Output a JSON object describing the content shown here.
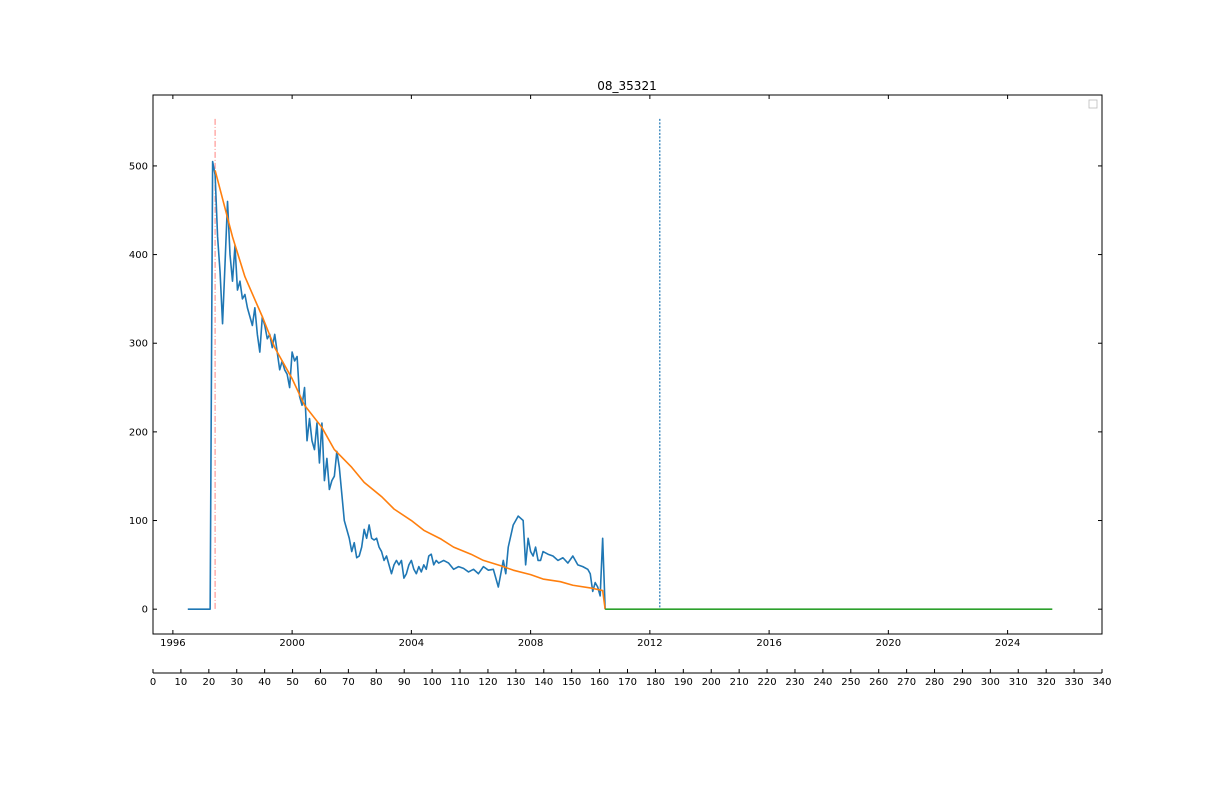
{
  "chart_data": {
    "type": "line",
    "title": "08_35321",
    "xlabel": "",
    "ylabel": "",
    "x_axis": {
      "kind": "date",
      "range": [
        "1995-05-01",
        "2027-03-01"
      ],
      "ticks": [
        "1996",
        "2000",
        "2004",
        "2008",
        "2012",
        "2016",
        "2020",
        "2024"
      ]
    },
    "y_axis": {
      "range": [
        -28,
        580
      ],
      "ticks": [
        0,
        100,
        200,
        300,
        400,
        500
      ]
    },
    "secondary_x_axis": {
      "range": [
        0,
        340
      ],
      "ticks": [
        0,
        10,
        20,
        30,
        40,
        50,
        60,
        70,
        80,
        90,
        100,
        110,
        120,
        130,
        140,
        150,
        160,
        170,
        180,
        190,
        200,
        210,
        220,
        230,
        240,
        250,
        260,
        270,
        280,
        290,
        300,
        310,
        320,
        330,
        340
      ]
    },
    "legend": {
      "placement": "top-right",
      "entries": []
    },
    "grid": false,
    "series": [
      {
        "color": "#1f77b4",
        "x": [
          "1996-07",
          "1996-10",
          "1997-01",
          "1997-04",
          "1997-05",
          "1997-06",
          "1997-07",
          "1997-08",
          "1997-09",
          "1997-10",
          "1997-11",
          "1997-12",
          "1998-01",
          "1998-02",
          "1998-03",
          "1998-04",
          "1998-05",
          "1998-06",
          "1998-07",
          "1998-08",
          "1998-09",
          "1998-10",
          "1998-11",
          "1998-12",
          "1999-01",
          "1999-02",
          "1999-03",
          "1999-04",
          "1999-05",
          "1999-06",
          "1999-07",
          "1999-08",
          "1999-09",
          "1999-10",
          "1999-11",
          "1999-12",
          "2000-01",
          "2000-02",
          "2000-03",
          "2000-04",
          "2000-05",
          "2000-06",
          "2000-07",
          "2000-08",
          "2000-09",
          "2000-10",
          "2000-11",
          "2000-12",
          "2001-01",
          "2001-02",
          "2001-03",
          "2001-04",
          "2001-05",
          "2001-06",
          "2001-07",
          "2001-08",
          "2001-09",
          "2001-10",
          "2001-11",
          "2001-12",
          "2002-01",
          "2002-02",
          "2002-03",
          "2002-04",
          "2002-05",
          "2002-06",
          "2002-07",
          "2002-08",
          "2002-09",
          "2002-10",
          "2002-11",
          "2002-12",
          "2003-01",
          "2003-02",
          "2003-03",
          "2003-04",
          "2003-05",
          "2003-06",
          "2003-07",
          "2003-08",
          "2003-09",
          "2003-10",
          "2003-11",
          "2003-12",
          "2004-01",
          "2004-02",
          "2004-03",
          "2004-04",
          "2004-05",
          "2004-06",
          "2004-07",
          "2004-08",
          "2004-09",
          "2004-10",
          "2004-11",
          "2004-12",
          "2005-02",
          "2005-04",
          "2005-06",
          "2005-08",
          "2005-10",
          "2005-12",
          "2006-02",
          "2006-04",
          "2006-06",
          "2006-08",
          "2006-10",
          "2006-12",
          "2007-02",
          "2007-03",
          "2007-04",
          "2007-06",
          "2007-08",
          "2007-10",
          "2007-11",
          "2007-12",
          "2008-01",
          "2008-02",
          "2008-03",
          "2008-04",
          "2008-05",
          "2008-06",
          "2008-08",
          "2008-10",
          "2008-12",
          "2009-02",
          "2009-04",
          "2009-06",
          "2009-08",
          "2009-10",
          "2009-12",
          "2010-01",
          "2010-02",
          "2010-03",
          "2010-04",
          "2010-05",
          "2010-06",
          "2010-07"
        ],
        "y": [
          0,
          0,
          0,
          0,
          505,
          490,
          420,
          380,
          322,
          390,
          460,
          400,
          370,
          410,
          360,
          370,
          350,
          355,
          340,
          330,
          320,
          340,
          310,
          290,
          330,
          320,
          305,
          310,
          295,
          310,
          290,
          270,
          280,
          270,
          265,
          250,
          290,
          280,
          285,
          240,
          230,
          250,
          190,
          215,
          190,
          180,
          210,
          165,
          210,
          145,
          170,
          135,
          145,
          150,
          178,
          160,
          130,
          100,
          90,
          80,
          65,
          75,
          58,
          60,
          70,
          90,
          80,
          95,
          80,
          78,
          80,
          70,
          65,
          55,
          60,
          50,
          40,
          50,
          55,
          50,
          55,
          35,
          40,
          50,
          55,
          45,
          40,
          48,
          42,
          50,
          45,
          60,
          62,
          50,
          55,
          52,
          55,
          52,
          45,
          48,
          46,
          42,
          45,
          40,
          48,
          44,
          45,
          25,
          55,
          40,
          70,
          95,
          105,
          100,
          50,
          80,
          65,
          60,
          70,
          55,
          55,
          65,
          62,
          60,
          55,
          58,
          52,
          60,
          50,
          48,
          45,
          40,
          20,
          30,
          25,
          15,
          80,
          0
        ]
      },
      {
        "color": "#ff7f0e",
        "x": [
          "1997-06",
          "1998-01",
          "1998-06",
          "1999-01",
          "1999-06",
          "2000-01",
          "2000-06",
          "2001-01",
          "2001-06",
          "2002-01",
          "2002-06",
          "2003-01",
          "2003-06",
          "2004-01",
          "2004-06",
          "2005-01",
          "2005-06",
          "2006-01",
          "2006-06",
          "2007-01",
          "2007-06",
          "2008-01",
          "2008-06",
          "2009-01",
          "2009-06",
          "2010-01",
          "2010-06",
          "2010-07"
        ],
        "y": [
          495,
          420,
          375,
          330,
          295,
          260,
          230,
          205,
          180,
          160,
          143,
          127,
          113,
          100,
          89,
          79,
          70,
          62,
          55,
          49,
          44,
          39,
          34,
          31,
          27,
          24,
          21,
          0
        ]
      },
      {
        "color": "#2ca02c",
        "x": [
          "2010-07",
          "2025-07"
        ],
        "y": [
          0,
          0
        ]
      }
    ],
    "vertical_lines": [
      {
        "x": "1997-06",
        "color": "#ff9896",
        "style": "dash-dot"
      },
      {
        "x": "2012-05",
        "color": "#1f77b4",
        "style": "dotted"
      }
    ]
  }
}
